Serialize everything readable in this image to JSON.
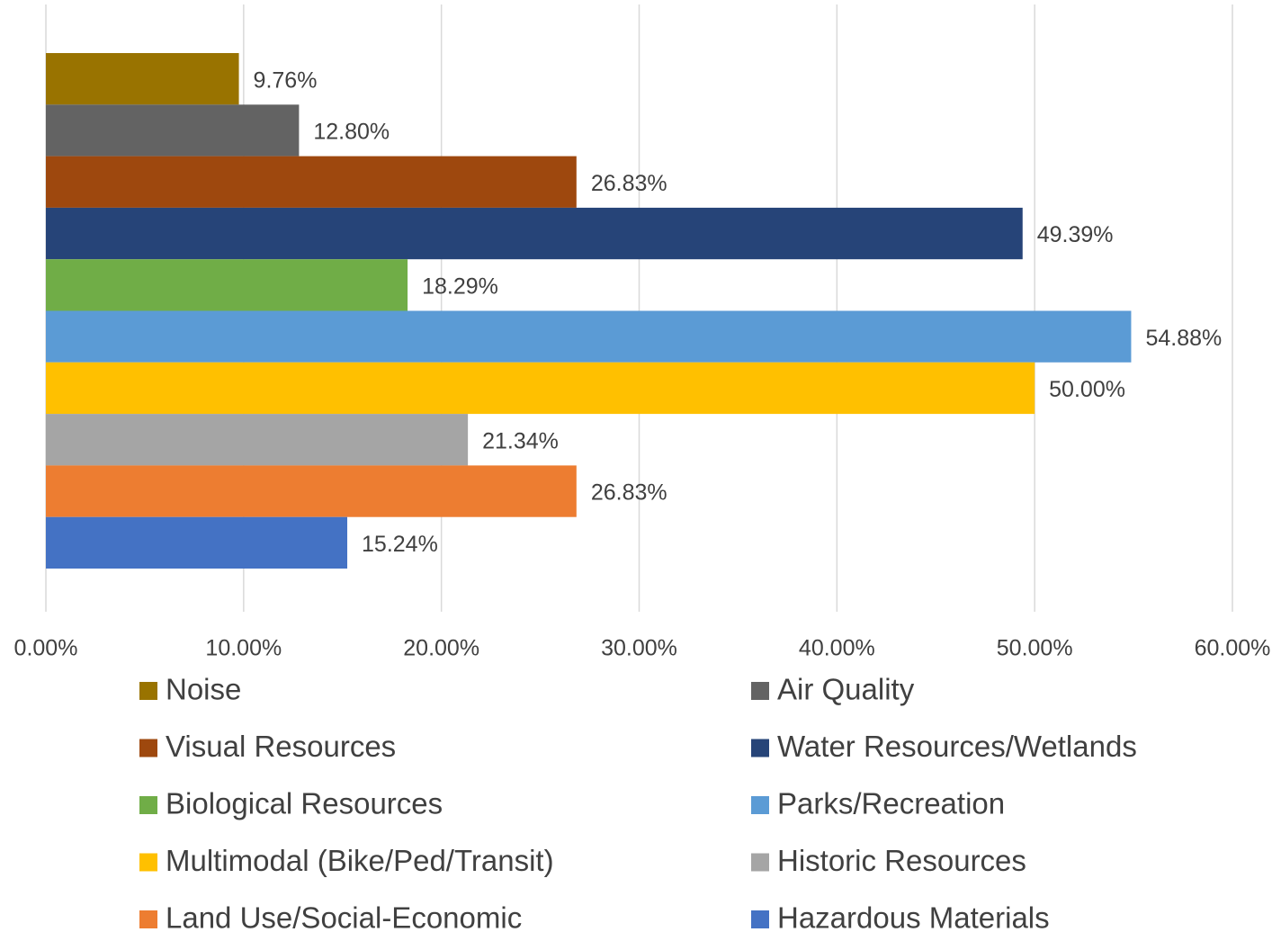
{
  "chart_data": {
    "type": "bar",
    "orientation": "horizontal",
    "series": [
      {
        "name": "Noise",
        "color": "#997300",
        "values": [
          9.76
        ],
        "value_labels": [
          "9.76%"
        ]
      },
      {
        "name": "Air Quality",
        "color": "#636363",
        "values": [
          12.8
        ],
        "value_labels": [
          "12.80%"
        ]
      },
      {
        "name": "Visual Resources",
        "color": "#9e480e",
        "values": [
          26.83
        ],
        "value_labels": [
          "26.83%"
        ]
      },
      {
        "name": "Water Resources/Wetlands",
        "color": "#264478",
        "values": [
          49.39
        ],
        "value_labels": [
          "49.39%"
        ]
      },
      {
        "name": "Biological Resources",
        "color": "#70ad47",
        "values": [
          18.29
        ],
        "value_labels": [
          "18.29%"
        ]
      },
      {
        "name": "Parks/Recreation",
        "color": "#5b9bd5",
        "values": [
          54.88
        ],
        "value_labels": [
          "54.88%"
        ]
      },
      {
        "name": "Multimodal (Bike/Ped/Transit)",
        "color": "#ffc000",
        "values": [
          50.0
        ],
        "value_labels": [
          "50.00%"
        ]
      },
      {
        "name": "Historic Resources",
        "color": "#a5a5a5",
        "values": [
          21.34
        ],
        "value_labels": [
          "21.34%"
        ]
      },
      {
        "name": "Land Use/Social-Economic",
        "color": "#ed7d31",
        "values": [
          26.83
        ],
        "value_labels": [
          "26.83%"
        ]
      },
      {
        "name": "Hazardous Materials",
        "color": "#4472c4",
        "values": [
          15.24
        ],
        "value_labels": [
          "15.24%"
        ]
      }
    ],
    "xlim": [
      0,
      60
    ],
    "xticks": [
      {
        "value": 0,
        "label": "0.00%"
      },
      {
        "value": 10,
        "label": "10.00%"
      },
      {
        "value": 20,
        "label": "20.00%"
      },
      {
        "value": 30,
        "label": "30.00%"
      },
      {
        "value": 40,
        "label": "40.00%"
      },
      {
        "value": 50,
        "label": "50.00%"
      },
      {
        "value": 60,
        "label": "60.00%"
      }
    ],
    "grid": true,
    "legend": "bottom"
  }
}
